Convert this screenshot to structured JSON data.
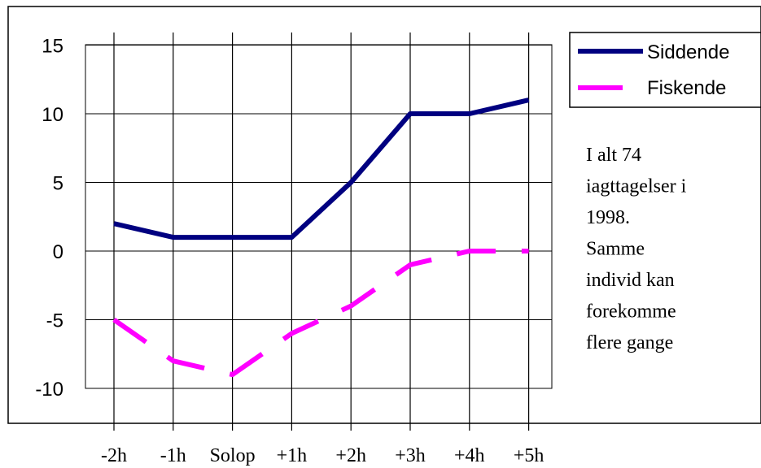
{
  "chart_data": {
    "type": "line",
    "x": [
      "-2h",
      "-1h",
      "Solop",
      "+1h",
      "+2h",
      "+3h",
      "+4h",
      "+5h"
    ],
    "series": [
      {
        "name": "Siddende",
        "values": [
          2,
          1,
          1,
          1,
          5,
          10,
          10,
          11
        ],
        "color": "#000080",
        "style": "solid"
      },
      {
        "name": "Fiskende",
        "values": [
          -5,
          -8,
          -9,
          -6,
          -4,
          -1,
          0,
          0
        ],
        "color": "#ff00ff",
        "style": "dashed"
      }
    ],
    "ylim": [
      -12,
      15
    ],
    "yticks": [
      15,
      10,
      5,
      0,
      -5,
      -10
    ],
    "title": "",
    "xlabel": "",
    "ylabel": "",
    "grid": "vertical lines at each category, horizontal lines at y ticks",
    "legend_position": "top-right",
    "annotation": {
      "lines": [
        "I alt 74",
        "iagttagelser i",
        "1998.",
        "Samme",
        "individ kan",
        "forekomme",
        "flere gange"
      ]
    }
  }
}
